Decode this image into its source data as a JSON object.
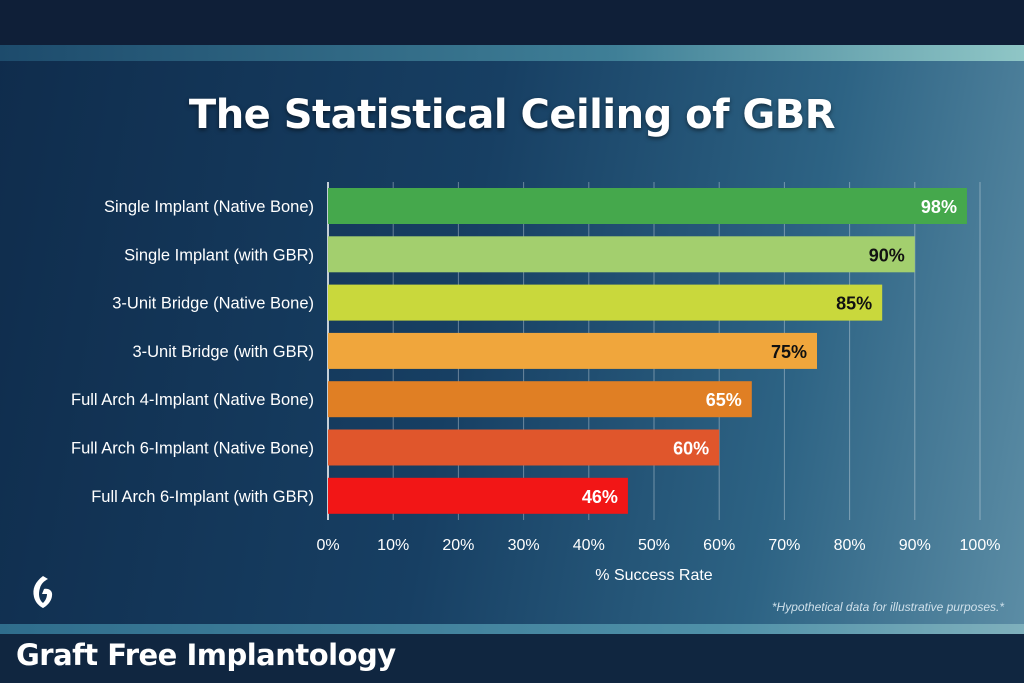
{
  "chart_data": {
    "type": "bar",
    "orientation": "horizontal",
    "title": "The Statistical Ceiling of GBR",
    "xlabel": "% Success Rate",
    "ylabel": "",
    "xlim": [
      0,
      100
    ],
    "xticks": [
      "0%",
      "10%",
      "20%",
      "30%",
      "40%",
      "50%",
      "60%",
      "70%",
      "80%",
      "90%",
      "100%"
    ],
    "grid": true,
    "categories": [
      "Single Implant (Native Bone)",
      "Single Implant (with GBR)",
      "3-Unit Bridge (Native Bone)",
      "3-Unit Bridge (with GBR)",
      "Full Arch 4-Implant (Native Bone)",
      "Full Arch 6-Implant (Native Bone)",
      "Full Arch 6-Implant (with GBR)"
    ],
    "values": [
      98,
      90,
      85,
      75,
      65,
      60,
      46
    ],
    "data_labels": [
      "98%",
      "90%",
      "85%",
      "75%",
      "65%",
      "60%",
      "46%"
    ],
    "colors": [
      "#45a84c",
      "#a3cf6e",
      "#c9d83c",
      "#f0a63c",
      "#e07f24",
      "#e0562c",
      "#f21616"
    ],
    "label_colors": [
      "#ffffff",
      "#111111",
      "#111111",
      "#111111",
      "#ffffff",
      "#ffffff",
      "#ffffff"
    ],
    "footnote": "*Hypothetical data for illustrative purposes.*"
  },
  "brand": {
    "name": "Graft Free Implantology",
    "logo_icon": "g-leaf-logo-icon"
  }
}
